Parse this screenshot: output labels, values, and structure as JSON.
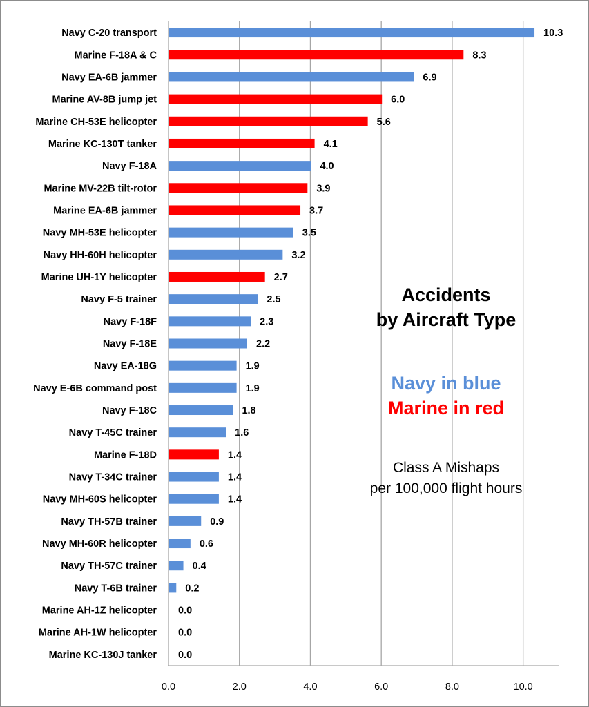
{
  "chart_data": {
    "type": "bar",
    "orientation": "horizontal",
    "categories": [
      "Navy C-20 transport",
      "Marine F-18A & C",
      "Navy EA-6B jammer",
      "Marine AV-8B jump jet",
      "Marine CH-53E helicopter",
      "Marine KC-130T tanker",
      "Navy F-18A",
      "Marine MV-22B tilt-rotor",
      "Marine EA-6B jammer",
      "Navy MH-53E helicopter",
      "Navy HH-60H helicopter",
      "Marine UH-1Y helicopter",
      "Navy F-5 trainer",
      "Navy F-18F",
      "Navy F-18E",
      "Navy EA-18G",
      "Navy E-6B command post",
      "Navy F-18C",
      "Navy T-45C trainer",
      "Marine F-18D",
      "Navy T-34C trainer",
      "Navy MH-60S helicopter",
      "Navy TH-57B trainer",
      "Navy MH-60R helicopter",
      "Navy TH-57C trainer",
      "Navy T-6B trainer",
      "Marine AH-1Z helicopter",
      "Marine AH-1W helicopter",
      "Marine KC-130J tanker"
    ],
    "values": [
      10.3,
      8.3,
      6.9,
      6.0,
      5.6,
      4.1,
      4.0,
      3.9,
      3.7,
      3.5,
      3.2,
      2.7,
      2.5,
      2.3,
      2.2,
      1.9,
      1.9,
      1.8,
      1.6,
      1.4,
      1.4,
      1.4,
      0.9,
      0.6,
      0.4,
      0.2,
      0.0,
      0.0,
      0.0
    ],
    "data_labels": [
      "10.3",
      "8.3",
      "6.9",
      "6.0",
      "5.6",
      "4.1",
      "4.0",
      "3.9",
      "3.7",
      "3.5",
      "3.2",
      "2.7",
      "2.5",
      "2.3",
      "2.2",
      "1.9",
      "1.9",
      "1.8",
      "1.6",
      "1.4",
      "1.4",
      "1.4",
      "0.9",
      "0.6",
      "0.4",
      "0.2",
      "0.0",
      "0.0",
      "0.0"
    ],
    "branch": [
      "Navy",
      "Marine",
      "Navy",
      "Marine",
      "Marine",
      "Marine",
      "Navy",
      "Marine",
      "Marine",
      "Navy",
      "Navy",
      "Marine",
      "Navy",
      "Navy",
      "Navy",
      "Navy",
      "Navy",
      "Navy",
      "Navy",
      "Marine",
      "Navy",
      "Navy",
      "Navy",
      "Navy",
      "Navy",
      "Navy",
      "Marine",
      "Marine",
      "Marine"
    ],
    "colors": {
      "Navy": "#5a8fd8",
      "Marine": "#ff0000"
    },
    "xlim": [
      0,
      11
    ],
    "xticks": [
      "0.0",
      "2.0",
      "4.0",
      "6.0",
      "8.0",
      "10.0"
    ],
    "xtick_values": [
      0,
      2,
      4,
      6,
      8,
      10
    ],
    "grid": "vertical",
    "title": "Accidents by Aircraft Type",
    "title_lines": [
      "Accidents",
      "by Aircraft Type"
    ],
    "legend": {
      "navy": "Navy in blue",
      "marine": "Marine in red"
    },
    "subtitle_lines": [
      "Class A Mishaps",
      "per 100,000 flight hours"
    ],
    "xlabel": "",
    "ylabel": ""
  }
}
